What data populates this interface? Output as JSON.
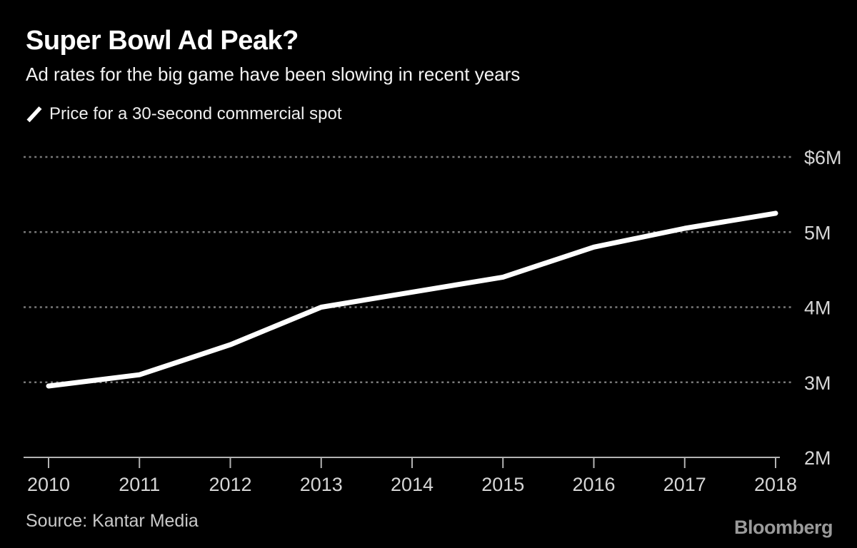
{
  "header": {
    "title": "Super Bowl Ad Peak?",
    "subtitle": "Ad rates for the big game have been slowing in recent years"
  },
  "legend": {
    "label": "Price for a 30-second commercial spot"
  },
  "chart_data": {
    "type": "line",
    "title": "Super Bowl Ad Peak?",
    "subtitle": "Ad rates for the big game have been slowing in recent years",
    "x": [
      2010,
      2011,
      2012,
      2013,
      2014,
      2015,
      2016,
      2017,
      2018
    ],
    "series": [
      {
        "name": "Price for a 30-second commercial spot",
        "values": [
          2.95,
          3.1,
          3.5,
          4.0,
          4.2,
          4.4,
          4.8,
          5.05,
          5.25
        ]
      }
    ],
    "unit": "million USD",
    "xlabel": "",
    "ylabel": "",
    "ylim": [
      2,
      6
    ],
    "yticks": [
      {
        "value": 6,
        "label": "$6M"
      },
      {
        "value": 5,
        "label": "5M"
      },
      {
        "value": 4,
        "label": "4M"
      },
      {
        "value": 3,
        "label": "3M"
      },
      {
        "value": 2,
        "label": "2M"
      }
    ],
    "grid": "horizontal dotted, labels on right, solid baseline at 2M",
    "legend_position": "top-left above plot",
    "line_color": "#ffffff",
    "grid_color": "#7a7a7a",
    "axis_color": "#b3b3b3",
    "tick_color": "#d6d6d6",
    "background": "#000000"
  },
  "footer": {
    "source": "Source: Kantar Media",
    "brand": "Bloomberg"
  }
}
